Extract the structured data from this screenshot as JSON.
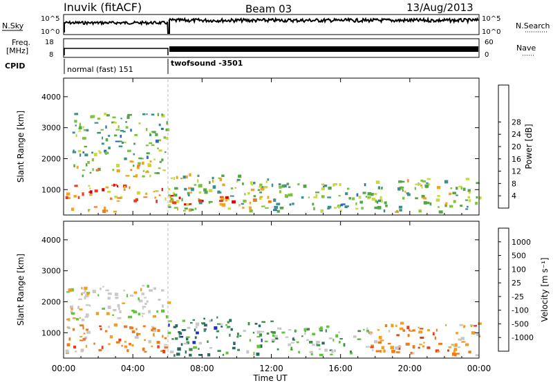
{
  "header": {
    "station": "Inuvik (fitACF)",
    "beam": "Beam 03",
    "date": "13/Aug/2013"
  },
  "strip": {
    "nsky_label": "N.Sky",
    "nsky_ticks": [
      "10^5",
      "10^0"
    ],
    "nsearch_label": "N.Search",
    "nsearch_ticks": [
      "10^5",
      "10^0"
    ],
    "freq_label_1": "Freq.",
    "freq_label_2": "[MHz]",
    "freq_ticks": [
      "18",
      "8"
    ],
    "nave_label": "Nave",
    "nave_ticks": [
      "60",
      "0"
    ],
    "cpid_label": "CPID",
    "cpid_segments": [
      {
        "label": "normal (fast) 151",
        "start": 0.0,
        "end": 6.0
      },
      {
        "label": "twofsound -3501",
        "start": 6.0,
        "end": 24.0
      }
    ]
  },
  "chart_data": [
    {
      "type": "heatmap",
      "name": "power",
      "ylabel": "Slant Range [km]",
      "yticks": [
        "1000",
        "2000",
        "3000",
        "4000"
      ],
      "ylim": [
        180,
        4600
      ],
      "xlim": [
        0,
        24
      ],
      "colorbar": {
        "label": "Power [dB]",
        "ticks": [
          "4",
          "8",
          "12",
          "16",
          "20",
          "24",
          "28"
        ],
        "range": [
          0,
          32
        ],
        "colors": [
          "#1f1fe6",
          "#2c6bc4",
          "#3d8f8c",
          "#55a64a",
          "#7dc43c",
          "#c9d93c",
          "#f2a41e",
          "#f27a1e",
          "#f23a1a",
          "#dd0000"
        ]
      },
      "regions": [
        {
          "t": [
            0.0,
            6.0
          ],
          "r": [
            1450,
            1950
          ],
          "level": 0.55
        },
        {
          "t": [
            0.0,
            6.0
          ],
          "r": [
            650,
            1200
          ],
          "level": 0.75
        },
        {
          "t": [
            0.0,
            3.0
          ],
          "r": [
            300,
            500
          ],
          "level": 0.6
        },
        {
          "t": [
            0.5,
            6.0
          ],
          "r": [
            2000,
            3500
          ],
          "level": 0.35
        },
        {
          "t": [
            6.0,
            12.0
          ],
          "r": [
            300,
            1550
          ],
          "level": 0.45
        },
        {
          "t": [
            6.0,
            12.0
          ],
          "r": [
            550,
            850
          ],
          "level": 0.85
        },
        {
          "t": [
            12.0,
            17.5
          ],
          "r": [
            300,
            1250
          ],
          "level": 0.35
        },
        {
          "t": [
            17.5,
            24.0
          ],
          "r": [
            300,
            1400
          ],
          "level": 0.45
        }
      ]
    },
    {
      "type": "heatmap",
      "name": "velocity",
      "ylabel": "Slant Range [km]",
      "yticks": [
        "1000",
        "2000",
        "3000",
        "4000"
      ],
      "ylim": [
        180,
        4600
      ],
      "xlim": [
        0,
        24
      ],
      "colorbar": {
        "label": "Velocity [m s⁻¹]",
        "ticks": [
          "1000",
          "500",
          "100",
          "25",
          "-25",
          "-100",
          "-500",
          "-1000"
        ],
        "colors": [
          "#1e2cc8",
          "#2a6a5e",
          "#3f8f4a",
          "#66c43a",
          "#c8c8c8",
          "#f0a020",
          "#f07a18",
          "#f03a18",
          "#e00000"
        ]
      },
      "regions": [
        {
          "t": [
            0.0,
            6.0
          ],
          "r": [
            1450,
            2550
          ],
          "level": "gray"
        },
        {
          "t": [
            0.0,
            6.0
          ],
          "r": [
            400,
            1300
          ],
          "level": "orange"
        },
        {
          "t": [
            6.0,
            12.0
          ],
          "r": [
            300,
            1550
          ],
          "level": "green-blue"
        },
        {
          "t": [
            12.0,
            17.5
          ],
          "r": [
            300,
            1250
          ],
          "level": "gray-green"
        },
        {
          "t": [
            17.5,
            24.0
          ],
          "r": [
            300,
            1400
          ],
          "level": "orange"
        }
      ]
    }
  ],
  "xaxis": {
    "ticks": [
      "00:00",
      "04:00",
      "08:00",
      "12:00",
      "16:00",
      "20:00",
      "00:00"
    ],
    "label": "Time UT"
  },
  "colors": {
    "frame": "#000000",
    "gap_line": "#bbbbbb"
  }
}
